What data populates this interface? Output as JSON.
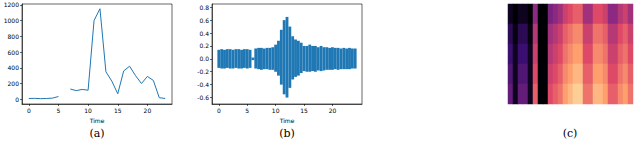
{
  "chart_data": [
    {
      "type": "line",
      "title": "(a)",
      "xlabel": "Time",
      "color": "#1f77b4",
      "grid": false,
      "x": [
        0,
        1,
        2,
        3,
        4,
        5,
        6,
        7,
        8,
        9,
        10,
        11,
        12,
        13,
        14,
        15,
        16,
        17,
        18,
        19,
        20,
        21,
        22,
        23
      ],
      "values": [
        10,
        12,
        8,
        10,
        15,
        35,
        null,
        130,
        110,
        125,
        115,
        1000,
        1150,
        350,
        230,
        70,
        360,
        420,
        300,
        200,
        290,
        240,
        20,
        10
      ],
      "xlim": [
        -1.15,
        24.15
      ],
      "ylim": [
        -60,
        1210
      ],
      "xticks": [
        0,
        5,
        10,
        15,
        20
      ],
      "yticks": [
        0,
        200,
        400,
        600,
        800,
        1000,
        1200
      ]
    },
    {
      "type": "area",
      "title": "(b)",
      "xlabel": "Time",
      "color": "#1f77b4",
      "grid": false,
      "x": [
        0,
        0.5,
        1,
        1.5,
        2,
        2.5,
        3,
        3.5,
        4,
        4.5,
        5,
        5.5,
        6,
        6.5,
        7,
        7.5,
        8,
        8.5,
        9,
        9.5,
        10,
        10.5,
        11,
        11.5,
        12,
        12.5,
        13,
        13.5,
        14,
        14.5,
        15,
        15.5,
        16,
        16.5,
        17,
        17.5,
        18,
        18.5,
        19,
        19.5,
        20,
        20.5,
        21,
        21.5,
        22,
        22.5,
        23,
        23.5,
        24
      ],
      "upper": [
        0.14,
        0.15,
        0.14,
        0.15,
        0.15,
        0.14,
        0.15,
        0.15,
        0.14,
        0.15,
        0.15,
        0.14,
        0.02,
        0.16,
        0.17,
        0.17,
        0.16,
        0.17,
        0.17,
        0.18,
        0.22,
        0.28,
        0.45,
        0.6,
        0.65,
        0.5,
        0.35,
        0.3,
        0.28,
        0.25,
        0.2,
        0.2,
        0.22,
        0.2,
        0.2,
        0.18,
        0.2,
        0.18,
        0.18,
        0.17,
        0.18,
        0.17,
        0.17,
        0.16,
        0.17,
        0.16,
        0.17,
        0.16,
        0.16
      ],
      "lower": [
        -0.14,
        -0.15,
        -0.15,
        -0.14,
        -0.15,
        -0.15,
        -0.14,
        -0.15,
        -0.15,
        -0.14,
        -0.15,
        -0.14,
        -0.02,
        -0.15,
        -0.16,
        -0.17,
        -0.16,
        -0.16,
        -0.17,
        -0.17,
        -0.2,
        -0.26,
        -0.4,
        -0.55,
        -0.6,
        -0.45,
        -0.32,
        -0.28,
        -0.26,
        -0.22,
        -0.19,
        -0.2,
        -0.2,
        -0.19,
        -0.2,
        -0.18,
        -0.19,
        -0.18,
        -0.17,
        -0.17,
        -0.17,
        -0.16,
        -0.17,
        -0.16,
        -0.16,
        -0.16,
        -0.16,
        -0.15,
        -0.15
      ],
      "xlim": [
        -1.2,
        25.2
      ],
      "ylim": [
        -0.7,
        0.85
      ],
      "xticks": [
        0,
        5,
        10,
        15,
        20
      ],
      "yticks": [
        -0.6,
        -0.4,
        -0.2,
        {
          "value": 0,
          "label": "0.0"
        },
        0.2,
        0.4,
        0.6,
        0.8
      ]
    },
    {
      "type": "heatmap",
      "title": "(c)",
      "tick_labels": false,
      "color_range": [
        0,
        1
      ],
      "cells": [
        [
          0.05,
          0,
          0.05,
          0.05,
          0,
          0.4,
          0,
          0,
          0.35,
          0.4,
          0.45,
          0.55,
          0.6,
          0.65,
          0.65,
          0.45,
          0.45,
          0.6,
          0.6,
          0.55,
          0.4,
          0.4,
          0.5,
          0.55,
          0.45
        ],
        [
          0.15,
          0.02,
          0.15,
          0.15,
          0.02,
          0.5,
          0,
          0,
          0.45,
          0.5,
          0.55,
          0.65,
          0.7,
          0.75,
          0.75,
          0.55,
          0.55,
          0.7,
          0.7,
          0.65,
          0.5,
          0.5,
          0.6,
          0.65,
          0.55
        ],
        [
          0.2,
          0.05,
          0.2,
          0.2,
          0.05,
          0.55,
          0,
          0,
          0.5,
          0.55,
          0.6,
          0.7,
          0.75,
          0.8,
          0.8,
          0.6,
          0.6,
          0.75,
          0.75,
          0.7,
          0.55,
          0.55,
          0.65,
          0.7,
          0.6
        ],
        [
          0.25,
          0.05,
          0.25,
          0.25,
          0.05,
          0.6,
          0,
          0,
          0.55,
          0.6,
          0.65,
          0.75,
          0.8,
          0.85,
          0.85,
          0.65,
          0.65,
          0.8,
          0.8,
          0.75,
          0.6,
          0.6,
          0.7,
          0.75,
          0.65
        ],
        [
          0.3,
          0.05,
          0.3,
          0.3,
          0.05,
          0.65,
          0,
          0,
          0.6,
          0.65,
          0.7,
          0.8,
          0.85,
          0.9,
          0.9,
          0.7,
          0.7,
          0.85,
          0.85,
          0.8,
          0.65,
          0.65,
          0.75,
          0.8,
          0.7
        ]
      ]
    }
  ]
}
